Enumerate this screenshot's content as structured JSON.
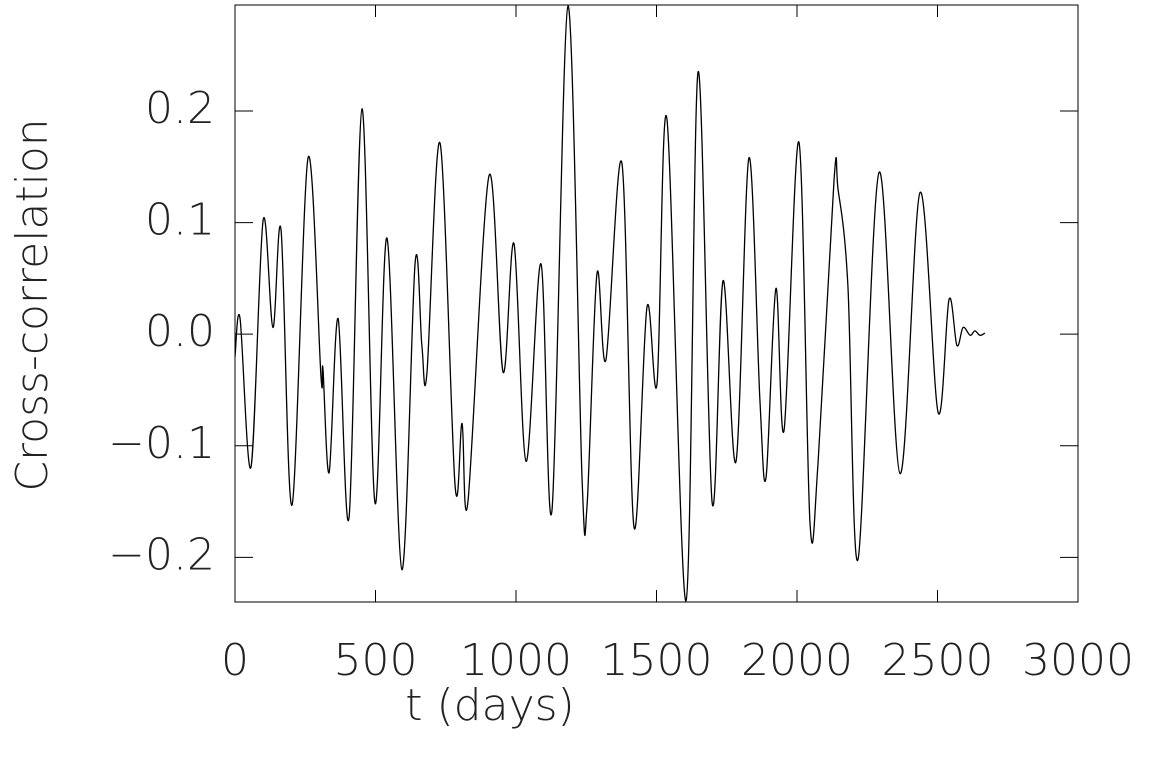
{
  "chart_data": {
    "type": "line",
    "xlabel": "t (days)",
    "ylabel": "Cross-correlation",
    "xlim": [
      0,
      3000
    ],
    "ylim": [
      -0.24,
      0.295
    ],
    "xticks": [
      0,
      500,
      1000,
      1500,
      2000,
      2500,
      3000
    ],
    "yticks": [
      {
        "value": -0.2,
        "label": "−0.2"
      },
      {
        "value": -0.1,
        "label": "−0.1"
      },
      {
        "value": 0,
        "label": "0.0"
      },
      0.1,
      0.2
    ],
    "series": [
      {
        "name": "Cross-correlation",
        "color": "#000000",
        "x": [
          0,
          18,
          57,
          100,
          135,
          164,
          203,
          260,
          306,
          313,
          335,
          367,
          406,
          452,
          498,
          541,
          594,
          641,
          665,
          683,
          730,
          783,
          808,
          829,
          904,
          954,
          993,
          1036,
          1089,
          1128,
          1185,
          1235,
          1253,
          1288,
          1320,
          1377,
          1420,
          1466,
          1502,
          1537,
          1605,
          1648,
          1698,
          1737,
          1783,
          1829,
          1868,
          1890,
          1925,
          1954,
          2007,
          2046,
          2075,
          2132,
          2146,
          2181,
          2217,
          2292,
          2367,
          2438,
          2502,
          2541,
          2569,
          2591,
          2616,
          2633,
          2651,
          2669
        ],
        "values": [
          -0.02,
          0.014,
          -0.119,
          0.102,
          0.006,
          0.093,
          -0.153,
          0.158,
          -0.038,
          -0.031,
          -0.124,
          0.014,
          -0.164,
          0.202,
          -0.151,
          0.086,
          -0.211,
          0.064,
          -0.01,
          -0.035,
          0.171,
          -0.135,
          -0.08,
          -0.15,
          0.142,
          -0.034,
          0.081,
          -0.114,
          0.063,
          -0.158,
          0.294,
          -0.129,
          -0.153,
          0.054,
          -0.023,
          0.153,
          -0.173,
          0.024,
          -0.044,
          0.193,
          -0.239,
          0.235,
          -0.151,
          0.048,
          -0.114,
          0.158,
          -0.059,
          -0.128,
          0.041,
          -0.086,
          0.172,
          -0.168,
          -0.115,
          0.139,
          0.13,
          0.044,
          -0.202,
          0.145,
          -0.125,
          0.127,
          -0.07,
          0.031,
          -0.01,
          0.006,
          -0.001,
          0.003,
          -0.001,
          0.001
        ]
      }
    ]
  }
}
